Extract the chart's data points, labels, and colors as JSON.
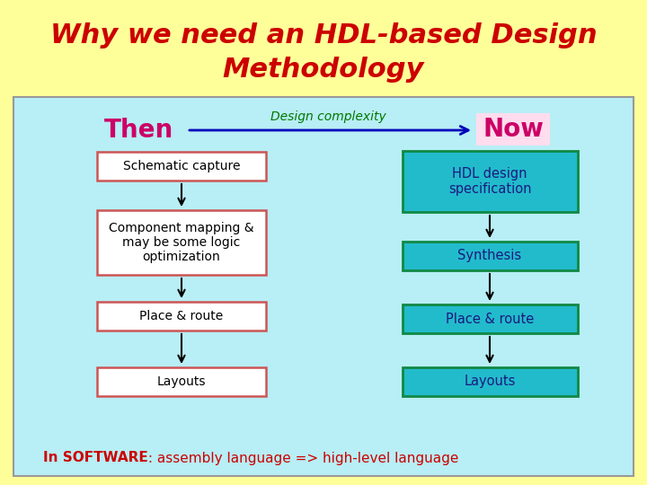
{
  "title_line1": "Why we need an HDL-based Design",
  "title_line2": "Methodology",
  "title_color": "#CC0000",
  "title_bg": "#FFFF99",
  "main_bg": "#B8EEF5",
  "then_label": "Then",
  "now_label": "Now",
  "then_color": "#CC0066",
  "now_color": "#CC0066",
  "now_bg": "#FFDDEE",
  "complexity_label": "Design complexity",
  "complexity_color": "#007700",
  "arrow_color": "#0000BB",
  "left_boxes": [
    "Schematic capture",
    "Component mapping &\nmay be some logic\noptimization",
    "Place & route",
    "Layouts"
  ],
  "right_boxes": [
    "HDL design\nspecification",
    "Synthesis",
    "Place & route",
    "Layouts"
  ],
  "left_box_bg": "#FFFFFF",
  "left_box_edge": "#CC5555",
  "right_box_bg": "#22BBCC",
  "right_box_edge": "#118844",
  "footer_text_red": "In SOFTWARE",
  "footer_text_black": " : assembly language => high-level language",
  "footer_color": "#CC0000"
}
